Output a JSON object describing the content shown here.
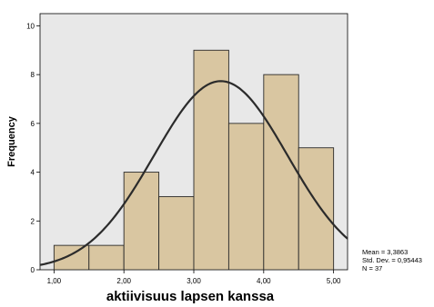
{
  "chart_data": {
    "type": "histogram",
    "title": "",
    "xlabel": "aktiivisuus lapsen kanssa",
    "ylabel": "Frequency",
    "xlim": [
      0.8,
      5.2
    ],
    "ylim": [
      0,
      10.5
    ],
    "xticks": [
      1,
      2,
      3,
      4,
      5
    ],
    "xtick_labels": [
      "1,00",
      "2,00",
      "3,00",
      "4,00",
      "5,00"
    ],
    "yticks": [
      0,
      2,
      4,
      6,
      8,
      10
    ],
    "ytick_labels": [
      "0",
      "2",
      "4",
      "6",
      "8",
      "10"
    ],
    "bins": [
      {
        "from": 1.0,
        "to": 1.5,
        "count": 1
      },
      {
        "from": 1.5,
        "to": 2.0,
        "count": 1
      },
      {
        "from": 2.0,
        "to": 2.5,
        "count": 4
      },
      {
        "from": 2.5,
        "to": 3.0,
        "count": 3
      },
      {
        "from": 3.0,
        "to": 3.5,
        "count": 9
      },
      {
        "from": 3.5,
        "to": 4.0,
        "count": 6
      },
      {
        "from": 4.0,
        "to": 4.5,
        "count": 8
      },
      {
        "from": 4.5,
        "to": 5.0,
        "count": 5
      }
    ],
    "normal_curve": {
      "mean": 3.3863,
      "std_dev": 0.95443,
      "n": 37,
      "bin_width": 0.5
    },
    "stats_text": [
      "Mean = 3,3863",
      "Std. Dev. = 0,95443",
      "N = 37"
    ],
    "grid": false,
    "colors": {
      "plot_background": "#e8e8e8",
      "bar_fill": "#d9c6a1",
      "bar_stroke": "#2a2a2a",
      "curve": "#2b2b2b",
      "axis": "#000000"
    }
  }
}
